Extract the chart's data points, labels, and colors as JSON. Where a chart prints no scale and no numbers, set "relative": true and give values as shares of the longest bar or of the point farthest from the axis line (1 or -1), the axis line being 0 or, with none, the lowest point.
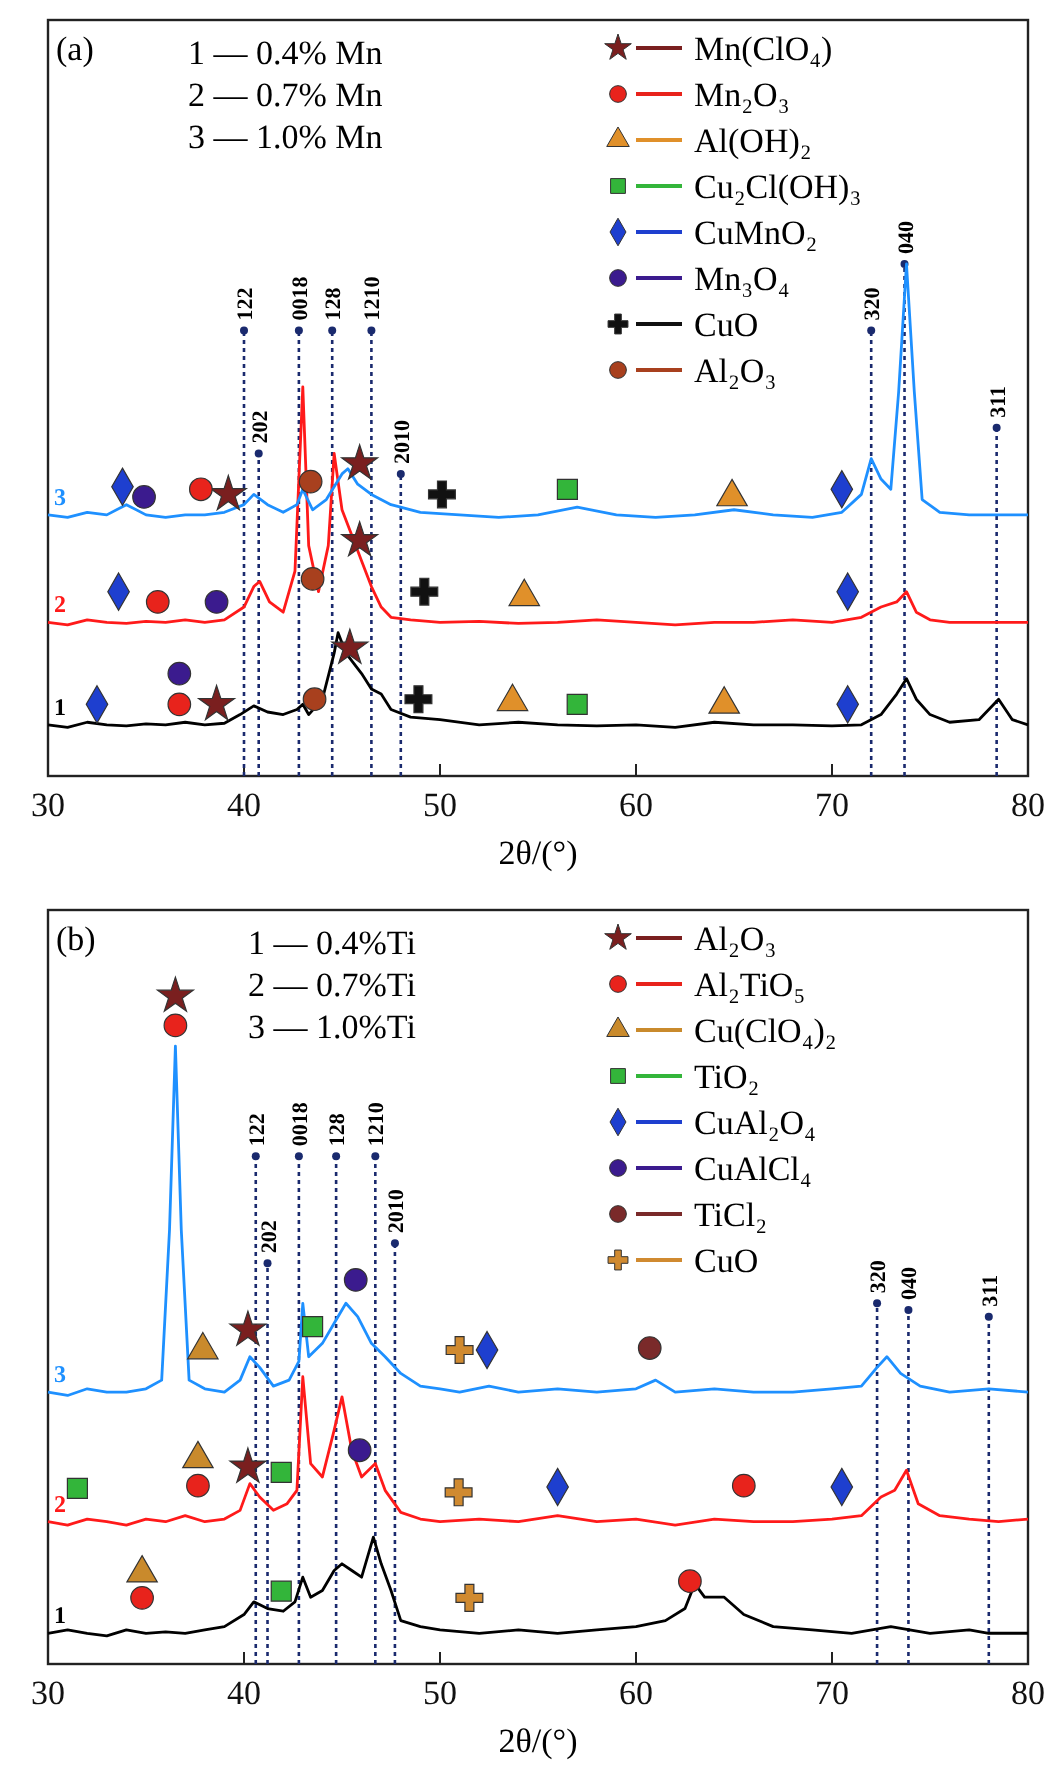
{
  "chart_data": [
    {
      "type": "line",
      "title": "(a)",
      "xlabel": "2θ/(°)",
      "relative": true,
      "xlim": [
        30,
        80
      ],
      "xticks": [
        30,
        40,
        50,
        60,
        70,
        80
      ],
      "legend": "top right",
      "line_style": "solid",
      "annotations": [
        "1 — 0.4% Mn",
        "2 — 0.7% Mn",
        "3 — 1.0% Mn",
        {
          "text": "122",
          "x": 40.0,
          "y": 0.87
        },
        {
          "text": "202",
          "x": 40.75,
          "y": 0.63
        },
        {
          "text": "0018",
          "x": 42.8,
          "y": 0.87
        },
        {
          "text": "128",
          "x": 44.5,
          "y": 0.87
        },
        {
          "text": "1210",
          "x": 46.5,
          "y": 0.87
        },
        {
          "text": "2010",
          "x": 48.0,
          "y": 0.59
        },
        {
          "text": "320",
          "x": 72.0,
          "y": 0.87
        },
        {
          "text": "040",
          "x": 73.7,
          "y": 1.0
        },
        {
          "text": "311",
          "x": 78.4,
          "y": 0.68
        }
      ],
      "ref_lines": [
        {
          "axis": "x",
          "value": 40.0,
          "color": "#1a2a6e",
          "line_style": "dotted"
        },
        {
          "axis": "x",
          "value": 40.75,
          "color": "#1a2a6e",
          "line_style": "dotted"
        },
        {
          "axis": "x",
          "value": 42.8,
          "color": "#1a2a6e",
          "line_style": "dotted"
        },
        {
          "axis": "x",
          "value": 44.5,
          "color": "#1a2a6e",
          "line_style": "dotted"
        },
        {
          "axis": "x",
          "value": 46.5,
          "color": "#1a2a6e",
          "line_style": "dotted"
        },
        {
          "axis": "x",
          "value": 48.0,
          "color": "#1a2a6e",
          "line_style": "dotted"
        },
        {
          "axis": "x",
          "value": 72.0,
          "color": "#1a2a6e",
          "line_style": "dotted"
        },
        {
          "axis": "x",
          "value": 73.7,
          "color": "#1a2a6e",
          "line_style": "dotted"
        },
        {
          "axis": "x",
          "value": 78.4,
          "color": "#1a2a6e",
          "line_style": "dotted"
        }
      ],
      "series": [
        {
          "name": "1",
          "color": "#000000",
          "x": [
            30,
            31,
            32,
            33,
            34,
            35,
            36,
            37,
            38,
            39,
            39.8,
            40.5,
            41.2,
            42,
            42.7,
            43,
            43.3,
            44,
            44.6,
            44.8,
            45.2,
            45.6,
            46,
            46.5,
            47,
            47.5,
            48.5,
            50,
            52,
            54,
            56,
            58,
            60,
            62,
            64,
            66,
            68,
            70,
            71.5,
            72.5,
            73.3,
            73.8,
            74.3,
            75,
            76,
            77.5,
            78.5,
            79.2,
            80
          ],
          "values": [
            0.1,
            0.095,
            0.105,
            0.1,
            0.098,
            0.102,
            0.1,
            0.105,
            0.1,
            0.103,
            0.12,
            0.137,
            0.125,
            0.12,
            0.13,
            0.14,
            0.12,
            0.15,
            0.24,
            0.28,
            0.24,
            0.22,
            0.2,
            0.17,
            0.16,
            0.13,
            0.115,
            0.11,
            0.1,
            0.105,
            0.1,
            0.098,
            0.1,
            0.095,
            0.105,
            0.1,
            0.1,
            0.098,
            0.1,
            0.12,
            0.16,
            0.19,
            0.15,
            0.12,
            0.105,
            0.11,
            0.15,
            0.11,
            0.1
          ]
        },
        {
          "name": "2",
          "color": "#ff1a1a",
          "x": [
            30,
            31,
            32,
            33,
            34,
            35,
            36,
            37,
            38,
            39,
            40,
            40.5,
            40.8,
            41.3,
            42,
            42.6,
            43,
            43.3,
            43.8,
            44.3,
            44.6,
            45,
            45.5,
            46,
            46.5,
            47,
            47.5,
            48.5,
            50,
            52,
            54,
            56,
            58,
            60,
            62,
            64,
            66,
            68,
            70,
            71.5,
            72.5,
            73.3,
            73.8,
            74.3,
            75,
            76,
            78,
            80
          ],
          "values": [
            0.3,
            0.295,
            0.305,
            0.3,
            0.298,
            0.302,
            0.3,
            0.305,
            0.3,
            0.305,
            0.33,
            0.37,
            0.38,
            0.34,
            0.32,
            0.4,
            0.76,
            0.45,
            0.36,
            0.45,
            0.63,
            0.52,
            0.47,
            0.42,
            0.37,
            0.33,
            0.31,
            0.305,
            0.3,
            0.302,
            0.298,
            0.3,
            0.305,
            0.3,
            0.295,
            0.3,
            0.3,
            0.305,
            0.3,
            0.31,
            0.33,
            0.34,
            0.36,
            0.32,
            0.305,
            0.3,
            0.3,
            0.3
          ]
        },
        {
          "name": "3",
          "color": "#1e90ff",
          "x": [
            30,
            31,
            32,
            33,
            34,
            35,
            36,
            37,
            38,
            39,
            40,
            40.5,
            41.2,
            42,
            42.7,
            43,
            43.5,
            44.2,
            45,
            45.3,
            45.8,
            46.5,
            47.5,
            49,
            51,
            53,
            55,
            57,
            59,
            61,
            63,
            65,
            67,
            69,
            70.5,
            71.5,
            72,
            72.5,
            73,
            73.4,
            73.8,
            74.2,
            74.6,
            75.5,
            77,
            78.5,
            80
          ],
          "values": [
            0.51,
            0.505,
            0.515,
            0.51,
            0.53,
            0.51,
            0.505,
            0.51,
            0.51,
            0.515,
            0.53,
            0.55,
            0.53,
            0.515,
            0.53,
            0.56,
            0.52,
            0.54,
            0.59,
            0.6,
            0.57,
            0.55,
            0.53,
            0.515,
            0.51,
            0.505,
            0.51,
            0.525,
            0.51,
            0.505,
            0.51,
            0.52,
            0.51,
            0.505,
            0.515,
            0.55,
            0.62,
            0.58,
            0.56,
            0.75,
            1,
            0.75,
            0.54,
            0.515,
            0.51,
            0.51,
            0.51
          ]
        },
        {
          "name": "Mn(ClO₄)",
          "type": "scatter",
          "marker": "star",
          "color": "#7a1f1f",
          "x": [
            38.6,
            45.4,
            45.9,
            39.2,
            45.9
          ],
          "values": [
            0.14,
            0.25,
            0.46,
            0.55,
            0.61
          ]
        },
        {
          "name": "Mn₂O₃",
          "type": "scatter",
          "marker": "circle",
          "color": "#e8231c",
          "x": [
            36.7,
            35.6,
            37.8
          ],
          "values": [
            0.14,
            0.34,
            0.56
          ]
        },
        {
          "name": "Al(OH)₂",
          "type": "scatter",
          "marker": "triangle",
          "color": "#e0902a",
          "x": [
            53.7,
            54.3,
            64.5,
            64.9
          ],
          "values": [
            0.145,
            0.35,
            0.14,
            0.545
          ]
        },
        {
          "name": "Cu₂Cl(OH)₃",
          "type": "scatter",
          "marker": "square",
          "color": "#33b53a",
          "x": [
            57.0,
            56.5
          ],
          "values": [
            0.14,
            0.56
          ]
        },
        {
          "name": "CuMnO₂",
          "type": "scatter",
          "marker": "diamond",
          "color": "#1e3fcf",
          "x": [
            32.5,
            33.6,
            33.8,
            70.8,
            70.8,
            70.5
          ],
          "values": [
            0.14,
            0.36,
            0.565,
            0.14,
            0.36,
            0.56
          ]
        },
        {
          "name": "Mn₃O₄",
          "type": "scatter",
          "marker": "circle",
          "color": "#3b1b8e",
          "x": [
            36.7,
            38.6,
            34.9
          ],
          "values": [
            0.2,
            0.34,
            0.545
          ]
        },
        {
          "name": "CuO",
          "type": "scatter",
          "marker": "cross",
          "color": "#111111",
          "x": [
            48.9,
            49.2,
            50.1
          ],
          "values": [
            0.15,
            0.36,
            0.55
          ]
        },
        {
          "name": "Al₂O₃",
          "type": "scatter",
          "marker": "circle",
          "color": "#a8401e",
          "x": [
            43.6,
            43.5,
            43.4
          ],
          "values": [
            0.15,
            0.385,
            0.575
          ]
        }
      ]
    },
    {
      "type": "line",
      "title": "(b)",
      "xlabel": "2θ/(°)",
      "relative": true,
      "xlim": [
        30,
        80
      ],
      "xticks": [
        30,
        40,
        50,
        60,
        70,
        80
      ],
      "legend": "top right",
      "line_style": "solid",
      "annotations": [
        "1 — 0.4%Ti",
        "2 — 0.7%Ti",
        "3 — 1.0%Ti",
        {
          "text": "122",
          "x": 40.6,
          "y": 0.76
        },
        {
          "text": "202",
          "x": 41.2,
          "y": 0.6
        },
        {
          "text": "0018",
          "x": 42.8,
          "y": 0.76
        },
        {
          "text": "128",
          "x": 44.7,
          "y": 0.76
        },
        {
          "text": "1210",
          "x": 46.7,
          "y": 0.76
        },
        {
          "text": "2010",
          "x": 47.7,
          "y": 0.63
        },
        {
          "text": "320",
          "x": 72.3,
          "y": 0.54
        },
        {
          "text": "040",
          "x": 73.9,
          "y": 0.53
        },
        {
          "text": "311",
          "x": 78.0,
          "y": 0.52
        }
      ],
      "ref_lines": [
        {
          "axis": "x",
          "value": 40.6,
          "color": "#1a2a6e",
          "line_style": "dotted"
        },
        {
          "axis": "x",
          "value": 41.2,
          "color": "#1a2a6e",
          "line_style": "dotted"
        },
        {
          "axis": "x",
          "value": 42.8,
          "color": "#1a2a6e",
          "line_style": "dotted"
        },
        {
          "axis": "x",
          "value": 44.7,
          "color": "#1a2a6e",
          "line_style": "dotted"
        },
        {
          "axis": "x",
          "value": 46.7,
          "color": "#1a2a6e",
          "line_style": "dotted"
        },
        {
          "axis": "x",
          "value": 47.7,
          "color": "#1a2a6e",
          "line_style": "dotted"
        },
        {
          "axis": "x",
          "value": 72.3,
          "color": "#1a2a6e",
          "line_style": "dotted"
        },
        {
          "axis": "x",
          "value": 73.9,
          "color": "#1a2a6e",
          "line_style": "dotted"
        },
        {
          "axis": "x",
          "value": 78.0,
          "color": "#1a2a6e",
          "line_style": "dotted"
        }
      ],
      "series": [
        {
          "name": "1",
          "color": "#000000",
          "x": [
            30,
            31,
            32,
            33,
            34,
            35,
            36,
            37,
            38,
            39,
            40,
            40.5,
            41.2,
            42,
            42.6,
            43,
            43.4,
            44,
            44.6,
            45,
            45.5,
            46,
            46.6,
            47,
            47.5,
            48,
            49,
            50,
            52,
            54,
            56,
            58,
            60,
            61.5,
            62.5,
            63,
            63.5,
            64.5,
            65.5,
            67,
            69,
            71,
            73,
            75,
            77,
            78,
            80
          ],
          "values": [
            0.046,
            0.051,
            0.046,
            0.042,
            0.051,
            0.046,
            0.048,
            0.046,
            0.051,
            0.056,
            0.074,
            0.093,
            0.083,
            0.079,
            0.093,
            0.13,
            0.1,
            0.11,
            0.14,
            0.15,
            0.14,
            0.13,
            0.19,
            0.15,
            0.11,
            0.065,
            0.056,
            0.051,
            0.046,
            0.051,
            0.046,
            0.051,
            0.056,
            0.065,
            0.083,
            0.12,
            0.1,
            0.1,
            0.074,
            0.056,
            0.051,
            0.046,
            0.056,
            0.046,
            0.051,
            0.046,
            0.046
          ]
        },
        {
          "name": "2",
          "color": "#ff1a1a",
          "x": [
            30,
            31,
            32,
            33,
            34,
            35,
            36,
            37,
            38,
            39,
            39.8,
            40.3,
            40.8,
            41.5,
            42.2,
            42.7,
            43,
            43.4,
            44,
            44.6,
            45,
            45.5,
            46,
            46.7,
            47.2,
            48,
            49,
            50,
            52,
            54,
            56,
            58,
            60,
            62,
            64,
            66,
            68,
            70,
            71.5,
            72.5,
            73.2,
            73.8,
            74.4,
            75.5,
            77,
            78.5,
            80
          ],
          "values": [
            0.213,
            0.208,
            0.217,
            0.213,
            0.208,
            0.217,
            0.213,
            0.222,
            0.213,
            0.217,
            0.23,
            0.27,
            0.25,
            0.23,
            0.24,
            0.26,
            0.43,
            0.3,
            0.28,
            0.35,
            0.4,
            0.32,
            0.28,
            0.3,
            0.26,
            0.227,
            0.217,
            0.213,
            0.217,
            0.213,
            0.222,
            0.213,
            0.217,
            0.208,
            0.217,
            0.213,
            0.213,
            0.217,
            0.222,
            0.25,
            0.26,
            0.29,
            0.24,
            0.222,
            0.217,
            0.213,
            0.217
          ]
        },
        {
          "name": "3",
          "color": "#1e90ff",
          "x": [
            30,
            31,
            32,
            33,
            34,
            35,
            35.8,
            36.2,
            36.5,
            36.8,
            37.2,
            38,
            39,
            39.8,
            40.3,
            40.8,
            41.5,
            42.3,
            42.8,
            43,
            43.3,
            44,
            44.6,
            45.2,
            45.8,
            46.5,
            47.2,
            48,
            49,
            50,
            51,
            52.5,
            54,
            56,
            58,
            60,
            61,
            62,
            64,
            66,
            68,
            70,
            71.5,
            72.3,
            72.8,
            73.5,
            74.5,
            76,
            78,
            80
          ],
          "values": [
            0.407,
            0.402,
            0.412,
            0.407,
            0.407,
            0.412,
            0.425,
            0.65,
            0.925,
            0.65,
            0.425,
            0.412,
            0.407,
            0.425,
            0.46,
            0.444,
            0.416,
            0.425,
            0.453,
            0.54,
            0.46,
            0.48,
            0.51,
            0.54,
            0.52,
            0.48,
            0.46,
            0.435,
            0.416,
            0.412,
            0.407,
            0.416,
            0.407,
            0.412,
            0.407,
            0.412,
            0.425,
            0.407,
            0.412,
            0.407,
            0.407,
            0.412,
            0.416,
            0.444,
            0.46,
            0.435,
            0.416,
            0.407,
            0.412,
            0.407
          ]
        },
        {
          "name": "Al₂O₃",
          "type": "scatter",
          "marker": "star",
          "color": "#7a1f1f",
          "x": [
            36.5,
            40.2,
            40.2
          ],
          "values": [
            1.0,
            0.5,
            0.295
          ]
        },
        {
          "name": "Al₂TiO₅",
          "type": "scatter",
          "marker": "circle",
          "color": "#e8231c",
          "x": [
            36.5,
            37.65,
            34.8,
            65.5,
            62.75
          ],
          "values": [
            0.956,
            0.267,
            0.099,
            0.267,
            0.124
          ]
        },
        {
          "name": "Cu(ClO₄)₂",
          "type": "scatter",
          "marker": "triangle",
          "color": "#c98a2c",
          "x": [
            37.9,
            37.65,
            34.8
          ],
          "values": [
            0.47,
            0.307,
            0.136
          ]
        },
        {
          "name": "TiO₂",
          "type": "scatter",
          "marker": "square",
          "color": "#33b53a",
          "x": [
            43.5,
            41.9,
            31.5,
            41.9
          ],
          "values": [
            0.505,
            0.287,
            0.263,
            0.109
          ]
        },
        {
          "name": "CuAl₂O₄",
          "type": "scatter",
          "marker": "diamond",
          "color": "#1e3fcf",
          "x": [
            52.4,
            56.0,
            70.5
          ],
          "values": [
            0.47,
            0.265,
            0.265
          ]
        },
        {
          "name": "CuAlCl₄",
          "type": "scatter",
          "marker": "circle",
          "color": "#3b1b8e",
          "x": [
            45.7,
            45.9
          ],
          "values": [
            0.575,
            0.32
          ]
        },
        {
          "name": "TiCl₂",
          "type": "scatter",
          "marker": "circle",
          "color": "#7a2a2a",
          "x": [
            60.7
          ],
          "values": [
            0.473
          ]
        },
        {
          "name": "CuO",
          "type": "scatter",
          "marker": "cross",
          "color": "#d08a30",
          "x": [
            51.0,
            50.95,
            51.5
          ],
          "values": [
            0.47,
            0.257,
            0.099
          ]
        }
      ]
    }
  ]
}
